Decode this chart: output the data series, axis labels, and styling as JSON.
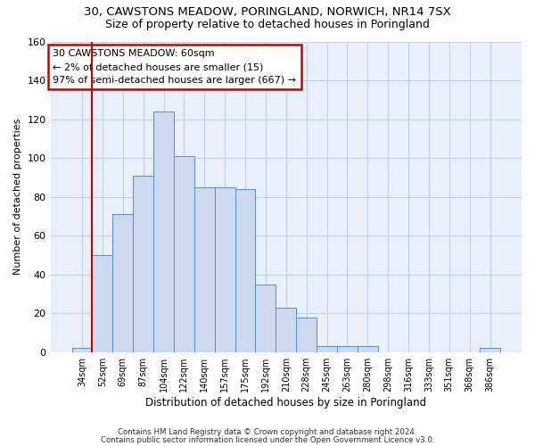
{
  "title1": "30, CAWSTONS MEADOW, PORINGLAND, NORWICH, NR14 7SX",
  "title2": "Size of property relative to detached houses in Poringland",
  "xlabel": "Distribution of detached houses by size in Poringland",
  "ylabel": "Number of detached properties",
  "categories": [
    "34sqm",
    "52sqm",
    "69sqm",
    "87sqm",
    "104sqm",
    "122sqm",
    "140sqm",
    "157sqm",
    "175sqm",
    "192sqm",
    "210sqm",
    "228sqm",
    "245sqm",
    "263sqm",
    "280sqm",
    "298sqm",
    "316sqm",
    "333sqm",
    "351sqm",
    "368sqm",
    "386sqm"
  ],
  "values": [
    2,
    50,
    71,
    91,
    124,
    101,
    85,
    85,
    84,
    35,
    23,
    18,
    3,
    3,
    3,
    0,
    0,
    0,
    0,
    0,
    2
  ],
  "bar_color": "#ccd9ee",
  "bar_edge_color": "#5b8dc8",
  "red_line_index": 1,
  "ylim": [
    0,
    160
  ],
  "yticks": [
    0,
    20,
    40,
    60,
    80,
    100,
    120,
    140,
    160
  ],
  "annotation_text": "30 CAWSTONS MEADOW: 60sqm\n← 2% of detached houses are smaller (15)\n97% of semi-detached houses are larger (667) →",
  "annotation_box_color": "#ffffff",
  "annotation_box_edge": "#cc0000",
  "footnote1": "Contains HM Land Registry data © Crown copyright and database right 2024.",
  "footnote2": "Contains public sector information licensed under the Open Government Licence v3.0.",
  "bg_color": "#ffffff",
  "axes_bg_color": "#eaf0fb",
  "grid_color": "#c0d0e8",
  "title1_fontsize": 9.5,
  "title2_fontsize": 9
}
